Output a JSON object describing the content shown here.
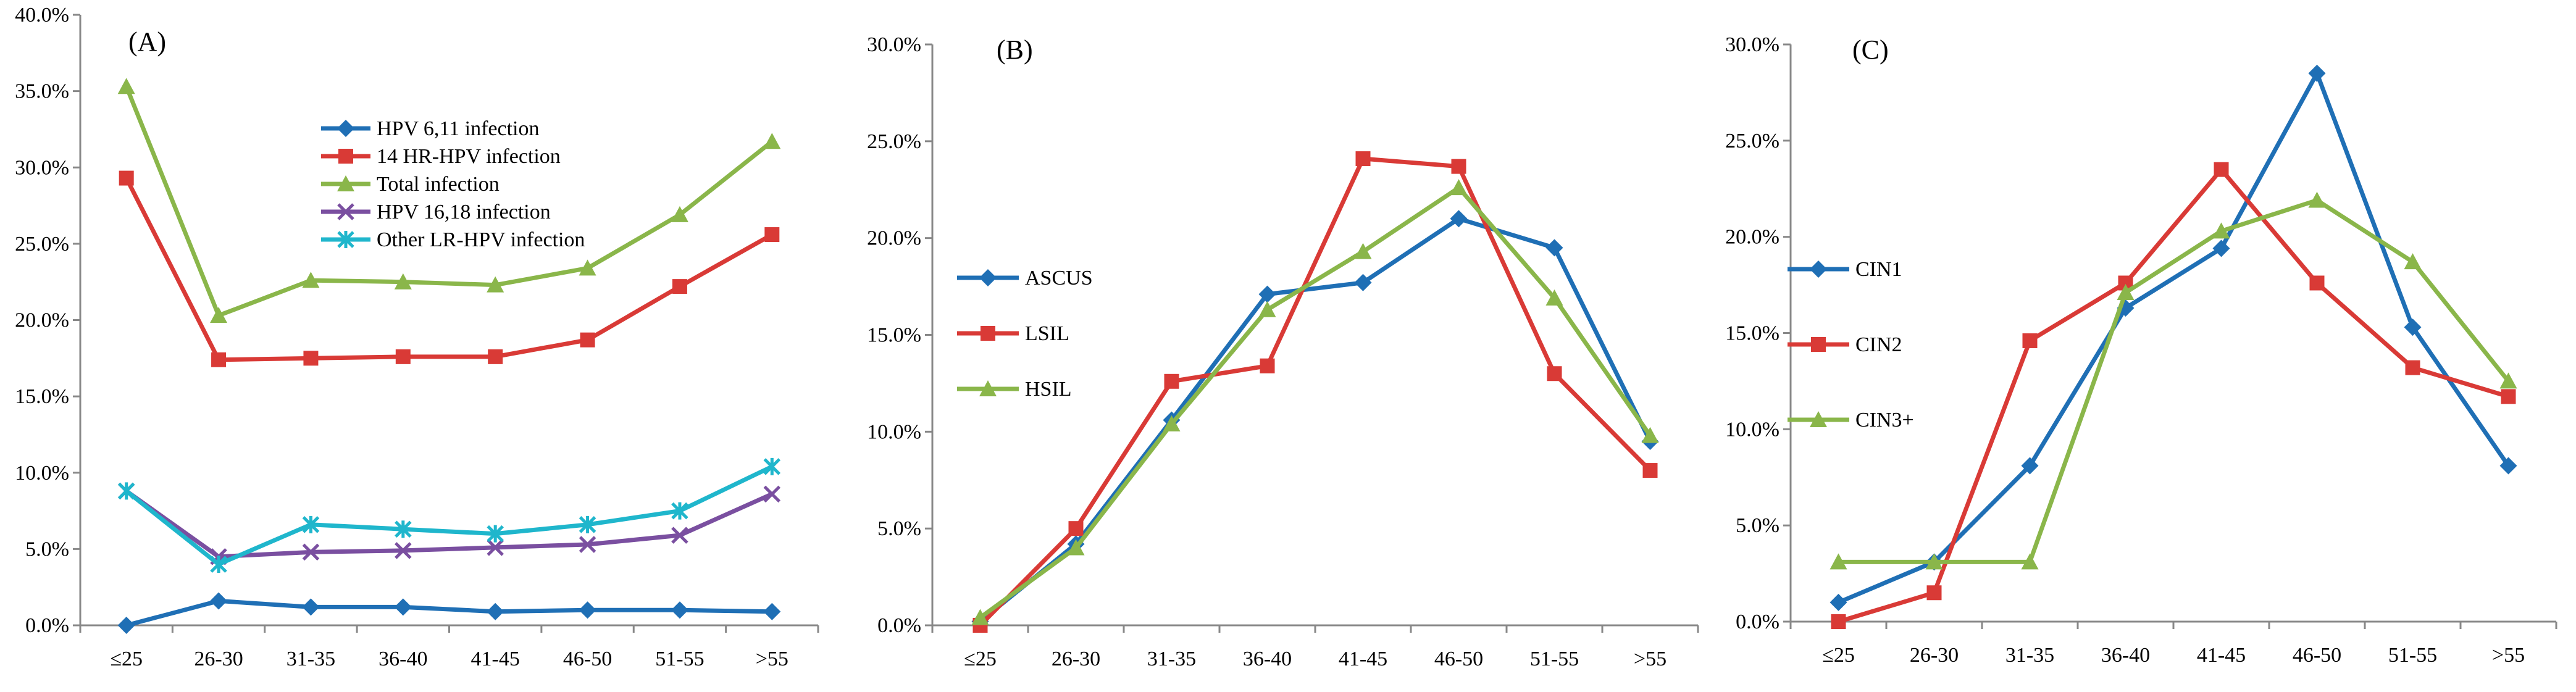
{
  "chart_data": [
    {
      "type": "line",
      "panel_label": "(A)",
      "categories": [
        "≤25",
        "26-30",
        "31-35",
        "36-40",
        "41-45",
        "46-50",
        "51-55",
        ">55"
      ],
      "y_ticks": [
        "0.0%",
        "5.0%",
        "10.0%",
        "15.0%",
        "20.0%",
        "25.0%",
        "30.0%",
        "35.0%",
        "40.0%"
      ],
      "ylim": [
        0,
        40
      ],
      "legend_position": "top-center",
      "series": [
        {
          "name": "HPV 6,11 infection",
          "marker": "diamond",
          "color": "#1f6fb5",
          "values": [
            0.0,
            1.6,
            1.2,
            1.2,
            0.9,
            1.0,
            1.0,
            0.9
          ]
        },
        {
          "name": "14 HR-HPV infection",
          "marker": "square",
          "color": "#d93a36",
          "values": [
            29.3,
            17.4,
            17.5,
            17.6,
            17.6,
            18.7,
            22.2,
            25.6
          ]
        },
        {
          "name": "Total infection",
          "marker": "triangle",
          "color": "#8ab64a",
          "values": [
            35.3,
            20.3,
            22.6,
            22.5,
            22.3,
            23.4,
            26.9,
            31.7
          ]
        },
        {
          "name": "HPV 16,18 infection",
          "marker": "x",
          "color": "#7a4fa0",
          "values": [
            8.8,
            4.5,
            4.8,
            4.9,
            5.1,
            5.3,
            5.9,
            8.6
          ]
        },
        {
          "name": "Other LR-HPV infection",
          "marker": "asterisk",
          "color": "#1fb6cc",
          "values": [
            8.8,
            4.0,
            6.6,
            6.3,
            6.0,
            6.6,
            7.5,
            10.4
          ]
        }
      ]
    },
    {
      "type": "line",
      "panel_label": "(B)",
      "categories": [
        "≤25",
        "26-30",
        "31-35",
        "36-40",
        "41-45",
        "46-50",
        "51-55",
        ">55"
      ],
      "y_ticks": [
        "0.0%",
        "5.0%",
        "10.0%",
        "15.0%",
        "20.0%",
        "25.0%",
        "30.0%"
      ],
      "ylim": [
        0,
        30
      ],
      "legend_position": "middle-left",
      "series": [
        {
          "name": "ASCUS",
          "marker": "diamond",
          "color": "#1f6fb5",
          "values": [
            0.2,
            4.2,
            10.6,
            17.1,
            17.7,
            21.0,
            19.5,
            9.5
          ]
        },
        {
          "name": "LSIL",
          "marker": "square",
          "color": "#d93a36",
          "values": [
            0.0,
            5.0,
            12.6,
            13.4,
            24.1,
            23.7,
            13.0,
            8.0
          ]
        },
        {
          "name": "HSIL",
          "marker": "triangle",
          "color": "#8ab64a",
          "values": [
            0.4,
            4.0,
            10.4,
            16.3,
            19.3,
            22.6,
            16.9,
            9.8
          ]
        }
      ]
    },
    {
      "type": "line",
      "panel_label": "(C)",
      "categories": [
        "≤25",
        "26-30",
        "31-35",
        "36-40",
        "41-45",
        "46-50",
        "51-55",
        ">55"
      ],
      "y_ticks": [
        "0.0%",
        "5.0%",
        "10.0%",
        "15.0%",
        "20.0%",
        "25.0%",
        "30.0%"
      ],
      "ylim": [
        0,
        30
      ],
      "legend_position": "middle-left",
      "series": [
        {
          "name": "CIN1",
          "marker": "diamond",
          "color": "#1f6fb5",
          "values": [
            1.0,
            3.1,
            8.1,
            16.3,
            19.4,
            28.5,
            15.3,
            8.1
          ]
        },
        {
          "name": "CIN2",
          "marker": "square",
          "color": "#d93a36",
          "values": [
            0.0,
            1.5,
            14.6,
            17.6,
            23.5,
            17.6,
            13.2,
            11.7
          ]
        },
        {
          "name": "CIN3+",
          "marker": "triangle",
          "color": "#8ab64a",
          "values": [
            3.1,
            3.1,
            3.1,
            17.1,
            20.3,
            21.9,
            18.7,
            12.5
          ]
        }
      ]
    }
  ]
}
